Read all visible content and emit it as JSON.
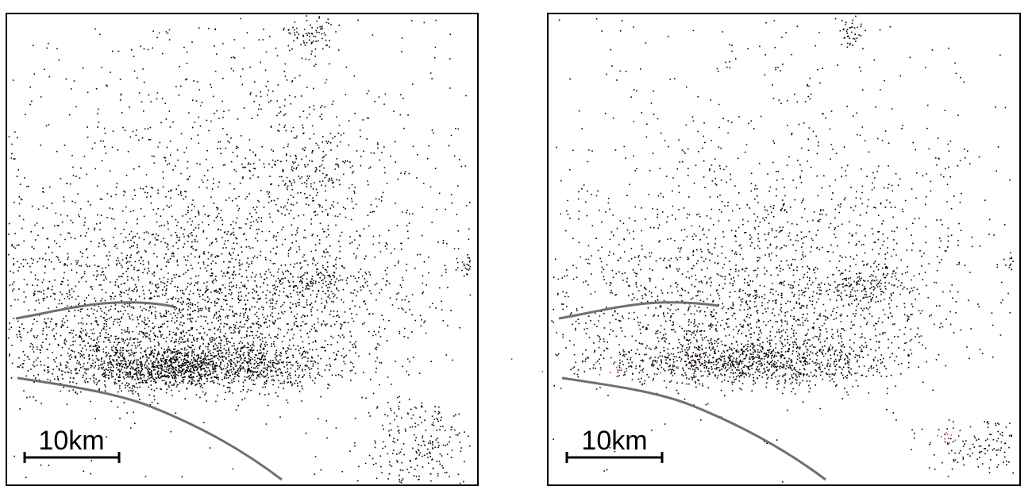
{
  "panels": [
    {
      "scale_bar": {
        "label": "10km"
      }
    },
    {
      "scale_bar": {
        "label": "10km"
      }
    }
  ]
}
